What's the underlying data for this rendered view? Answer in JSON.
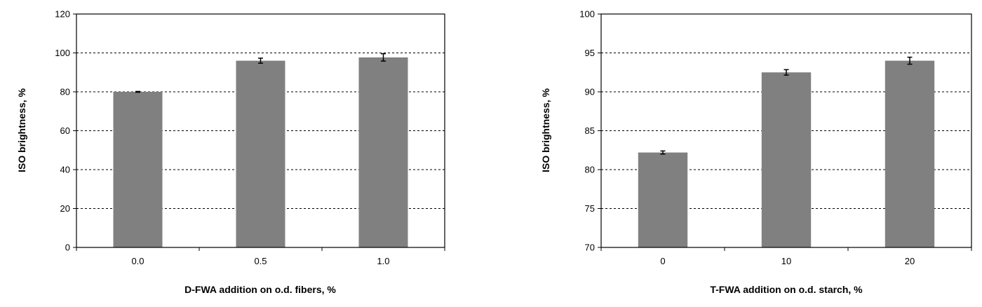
{
  "chart_data": [
    {
      "type": "bar",
      "categories": [
        "0.0",
        "0.5",
        "1.0"
      ],
      "values": [
        80.0,
        96.0,
        97.7
      ],
      "errors": [
        0.2,
        1.3,
        1.9
      ],
      "xlabel": "D-FWA addition on o.d. fibers, %",
      "ylabel": "ISO brightness, %",
      "ylim": [
        0,
        120
      ],
      "yticks": [
        "0",
        "20",
        "40",
        "60",
        "80",
        "100",
        "120"
      ],
      "grid": "dashed horizontal",
      "bar_color": "#808080"
    },
    {
      "type": "bar",
      "categories": [
        "0",
        "10",
        "20"
      ],
      "values": [
        82.2,
        92.5,
        94.0
      ],
      "errors": [
        0.2,
        0.35,
        0.45
      ],
      "xlabel": "T-FWA addition on o.d. starch, %",
      "ylabel": "ISO brightness, %",
      "ylim": [
        70,
        100
      ],
      "yticks": [
        "70",
        "75",
        "80",
        "85",
        "90",
        "95",
        "100"
      ],
      "grid": "dashed horizontal",
      "bar_color": "#808080"
    }
  ]
}
